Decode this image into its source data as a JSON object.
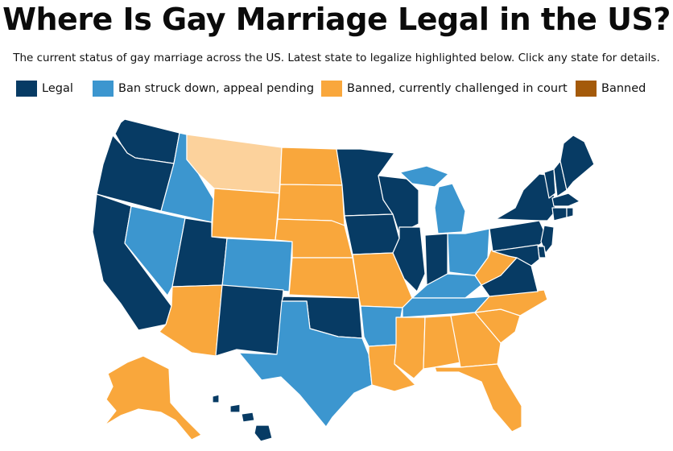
{
  "title": "Where Is Gay Marriage Legal in the US?",
  "subtitle": "The current status of gay marriage across the US. Latest state to legalize highlighted below. Click any state for details.",
  "legend": [
    {
      "key": "legal",
      "label": "Legal",
      "color": "#073b64"
    },
    {
      "key": "struck",
      "label": "Ban struck down, appeal pending",
      "color": "#3c96cf"
    },
    {
      "key": "challenged",
      "label": "Banned, currently challenged in court",
      "color": "#f9a73c"
    },
    {
      "key": "banned",
      "label": "Banned",
      "color": "#a45a0a"
    }
  ],
  "highlight_color": "#fcd29c",
  "highlighted_state": "Montana",
  "states": {
    "Washington": "legal",
    "Oregon": "legal",
    "California": "legal",
    "Nevada": "struck",
    "Idaho": "struck",
    "Montana": "challenged",
    "Wyoming": "challenged",
    "Utah": "legal",
    "Colorado": "struck",
    "Arizona": "challenged",
    "New Mexico": "legal",
    "North Dakota": "challenged",
    "South Dakota": "challenged",
    "Nebraska": "challenged",
    "Kansas": "challenged",
    "Oklahoma": "legal",
    "Texas": "struck",
    "Minnesota": "legal",
    "Iowa": "legal",
    "Missouri": "challenged",
    "Arkansas": "struck",
    "Louisiana": "challenged",
    "Wisconsin": "legal",
    "Illinois": "legal",
    "Michigan": "struck",
    "Indiana": "legal",
    "Ohio": "struck",
    "Kentucky": "struck",
    "Tennessee": "struck",
    "Mississippi": "challenged",
    "Alabama": "challenged",
    "Georgia": "challenged",
    "Florida": "challenged",
    "South Carolina": "challenged",
    "North Carolina": "challenged",
    "Virginia": "legal",
    "West Virginia": "challenged",
    "Pennsylvania": "legal",
    "New York": "legal",
    "Vermont": "legal",
    "New Hampshire": "legal",
    "Maine": "legal",
    "Massachusetts": "legal",
    "Connecticut": "legal",
    "Rhode Island": "legal",
    "New Jersey": "legal",
    "Delaware": "legal",
    "Maryland": "legal",
    "Alaska": "challenged",
    "Hawaii": "legal"
  }
}
